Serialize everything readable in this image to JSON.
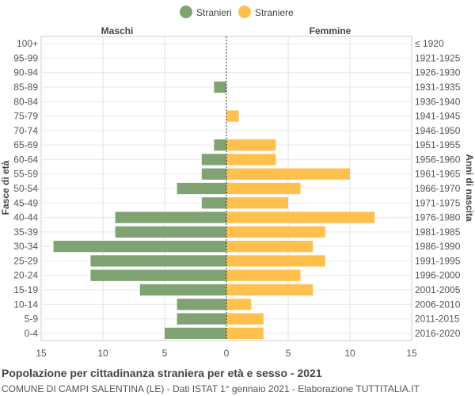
{
  "chart_data": {
    "type": "bar",
    "orientation": "horizontal-population-pyramid",
    "title": "Popolazione per cittadinanza straniera per età e sesso - 2021",
    "subtitle": "COMUNE DI CAMPI SALENTINA (LE) - Dati ISTAT 1° gennaio 2021 - Elaborazione TUTTITALIA.IT",
    "left_header": "Maschi",
    "right_header": "Femmine",
    "ylabel_left": "Fasce di età",
    "ylabel_right": "Anni di nascita",
    "xlim": [
      -15,
      15
    ],
    "x_ticks": [
      -15,
      -10,
      -5,
      0,
      5,
      10,
      15
    ],
    "x_tick_labels": [
      "15",
      "10",
      "5",
      "0",
      "5",
      "10",
      "15"
    ],
    "grid": true,
    "legend_position": "top-center",
    "categories": [
      "100+",
      "95-99",
      "90-94",
      "85-89",
      "80-84",
      "75-79",
      "70-74",
      "65-69",
      "60-64",
      "55-59",
      "50-54",
      "45-49",
      "40-44",
      "35-39",
      "30-34",
      "25-29",
      "20-24",
      "15-19",
      "10-14",
      "5-9",
      "0-4"
    ],
    "birth_years": [
      "≤ 1920",
      "1921-1925",
      "1926-1930",
      "1931-1935",
      "1936-1940",
      "1941-1945",
      "1946-1950",
      "1951-1955",
      "1956-1960",
      "1961-1965",
      "1966-1970",
      "1971-1975",
      "1976-1980",
      "1981-1985",
      "1986-1990",
      "1991-1995",
      "1996-2000",
      "2001-2005",
      "2006-2010",
      "2011-2015",
      "2016-2020"
    ],
    "series": [
      {
        "name": "Stranieri",
        "color": "#7fa372",
        "values": [
          0,
          0,
          0,
          1,
          0,
          0,
          0,
          1,
          2,
          2,
          4,
          2,
          9,
          9,
          14,
          11,
          11,
          7,
          4,
          4,
          5
        ]
      },
      {
        "name": "Straniere",
        "color": "#ffc04d",
        "values": [
          0,
          0,
          0,
          0,
          0,
          1,
          0,
          4,
          4,
          10,
          6,
          5,
          12,
          8,
          7,
          8,
          6,
          7,
          2,
          3,
          3
        ]
      }
    ]
  }
}
